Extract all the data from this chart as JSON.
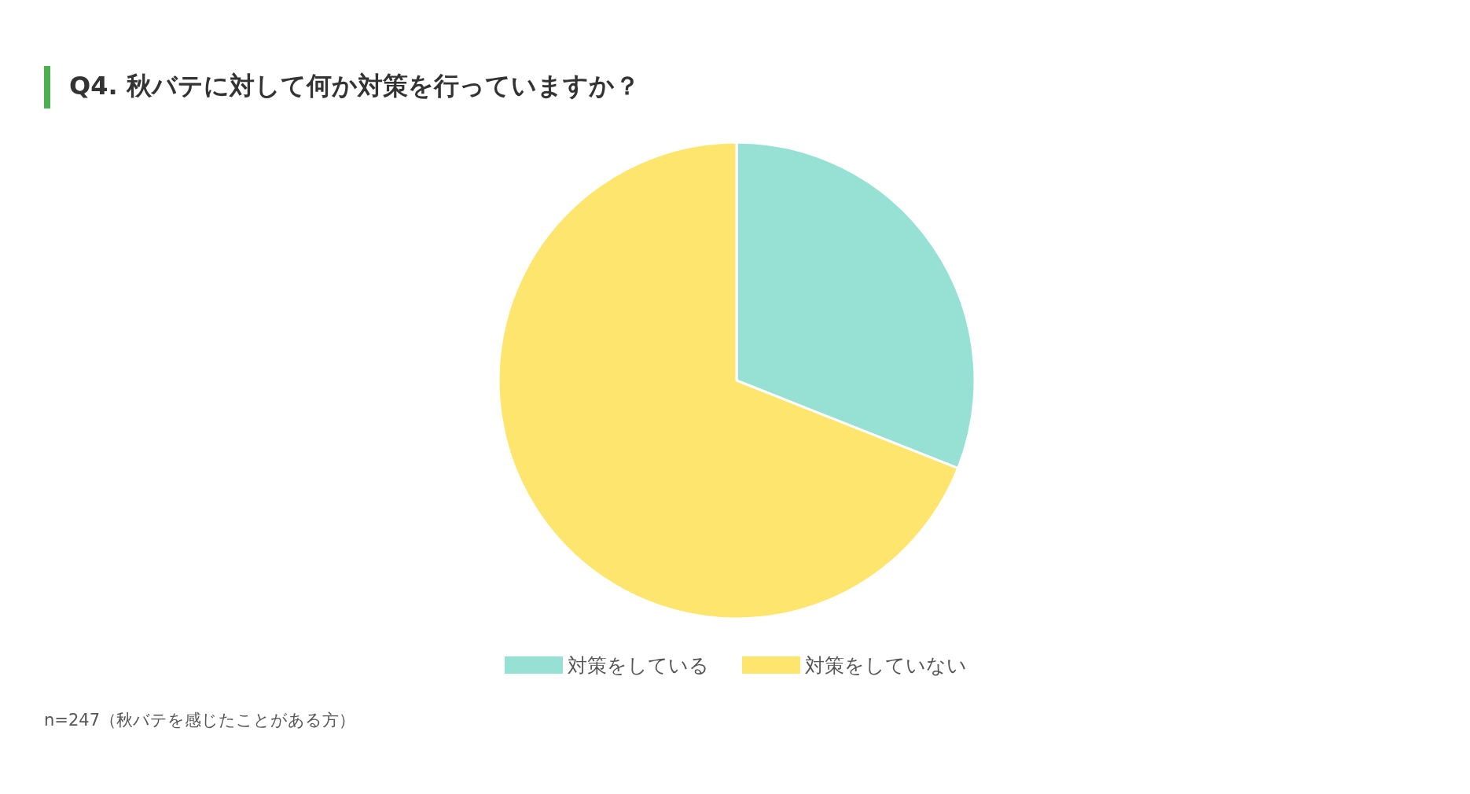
{
  "chart_data": {
    "type": "pie",
    "title": "Q4. 秋バテに対して何か対策を行っていますか？",
    "categories": [
      "対策をしている",
      "対策をしていない"
    ],
    "values": [
      31,
      69
    ],
    "colors": [
      "#96e1d4",
      "#fde56e"
    ],
    "legend": "bottom",
    "annotations": [
      "n=247（秋バテを感じたことがある方）"
    ]
  }
}
